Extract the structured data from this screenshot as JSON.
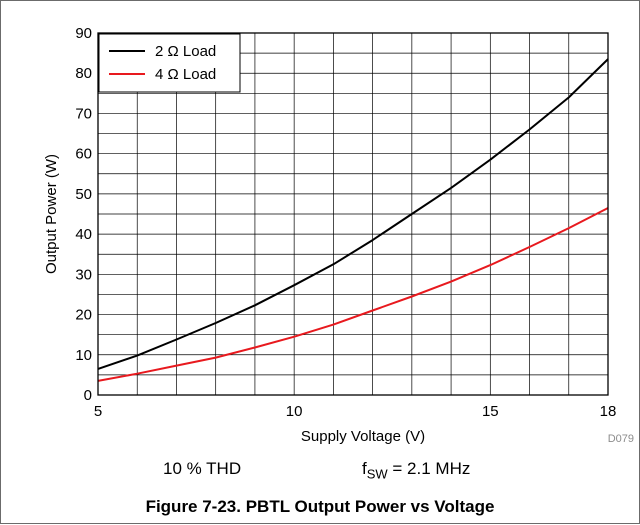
{
  "chart_data": {
    "type": "line",
    "xlabel": "Supply Voltage (V)",
    "ylabel": "Output Power (W)",
    "xlim": [
      5,
      18
    ],
    "ylim": [
      0,
      90
    ],
    "x_ticks": [
      5,
      10,
      15,
      18
    ],
    "y_ticks": [
      0,
      10,
      20,
      30,
      40,
      50,
      60,
      70,
      80,
      90
    ],
    "x_minor_step": 1,
    "y_minor_step": 5,
    "grid": true,
    "legend_position": "top-left",
    "series": [
      {
        "name": "2 Ω Load",
        "color": "#000000",
        "x": [
          5,
          6,
          7,
          8,
          9,
          10,
          11,
          12,
          13,
          14,
          15,
          16,
          17,
          18
        ],
        "y": [
          6.5,
          9.8,
          13.8,
          17.9,
          22.3,
          27.3,
          32.5,
          38.5,
          45.0,
          51.5,
          58.5,
          66.0,
          74.0,
          83.5
        ]
      },
      {
        "name": "4 Ω Load",
        "color": "#e8191e",
        "x": [
          5,
          6,
          7,
          8,
          9,
          10,
          11,
          12,
          13,
          14,
          15,
          16,
          17,
          18
        ],
        "y": [
          3.5,
          5.3,
          7.3,
          9.3,
          11.8,
          14.5,
          17.5,
          21.0,
          24.5,
          28.2,
          32.3,
          36.8,
          41.5,
          46.5
        ]
      }
    ],
    "figure_code": "D079"
  },
  "conditions": {
    "thd": "10 % THD",
    "fsw_prefix": "f",
    "fsw_subscript": "SW",
    "fsw_value": " = 2.1 MHz"
  },
  "caption": "Figure 7-23. PBTL Output Power vs Voltage"
}
